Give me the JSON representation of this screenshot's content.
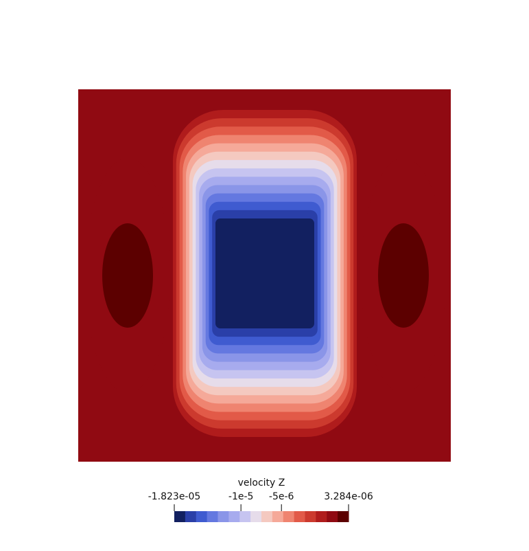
{
  "chart_data": {
    "type": "heatmap",
    "field": "velocity Z",
    "range": [
      -1.823e-05,
      3.284e-06
    ],
    "colorbar": {
      "title": "velocity Z",
      "tick_labels": [
        {
          "label": "-1.823e-05",
          "value": -1.823e-05
        },
        {
          "label": "-1e-5",
          "value": -1e-05
        },
        {
          "label": "-5e-6",
          "value": -5e-06
        },
        {
          "label": "3.284e-06",
          "value": 3.284e-06
        }
      ],
      "colors": [
        "#122060",
        "#2a3fa8",
        "#3f5bd0",
        "#6478e0",
        "#8a95e8",
        "#a7abee",
        "#c6c4f0",
        "#e6dcea",
        "#f4c9c0",
        "#f5a999",
        "#ef8470",
        "#e25a48",
        "#cc3a2e",
        "#b01c1c",
        "#900a12",
        "#5c0000"
      ]
    },
    "regions": [
      {
        "label": "background",
        "value": 1.8e-06
      },
      {
        "label": "central-core",
        "value": -1.823e-05
      },
      {
        "label": "side-lobe-left",
        "value": 3.284e-06
      },
      {
        "label": "side-lobe-right",
        "value": 3.284e-06
      }
    ]
  }
}
